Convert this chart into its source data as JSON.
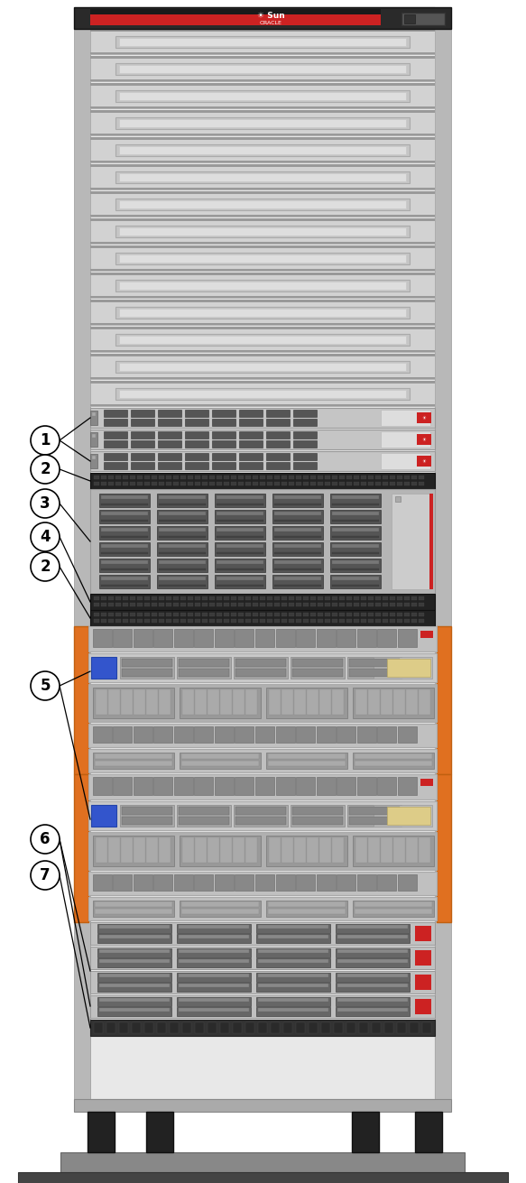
{
  "bg_color": "#ffffff",
  "rack_outer_color": "#c0c0c0",
  "rack_rail_color": "#b8b8b8",
  "rack_inner_bg": "#e8e8e8",
  "rack_top_bezel": "#2a2a2a",
  "red_stripe": "#cc2222",
  "shelf_bg": "#d2d2d2",
  "shelf_bar": "#c5c5c5",
  "shelf_bar_inner": "#dedede",
  "shelf_strip": "#999999",
  "zfs_bg": "#c5c5c5",
  "drive_dark": "#555555",
  "patch_dark": "#222222",
  "patch_vent": "#3a3a3a",
  "storage_bg": "#b5b5b5",
  "sparc_orange": "#e07020",
  "sparc_vent": "#888888",
  "sparc_vent_dark": "#666666",
  "sparc_io_blue": "#3355cc",
  "sparc_sled": "#c0c0c0",
  "sparc_sled_dark": "#b0b0b0",
  "drive_row_bg": "#c0c0c0",
  "cable_bg": "#333333",
  "floor_dark": "#444444",
  "floor_base": "#888888",
  "foot_color": "#222222",
  "red_badge": "#cc2222",
  "label_circle_fc": "#ffffff",
  "label_circle_ec": "#000000"
}
